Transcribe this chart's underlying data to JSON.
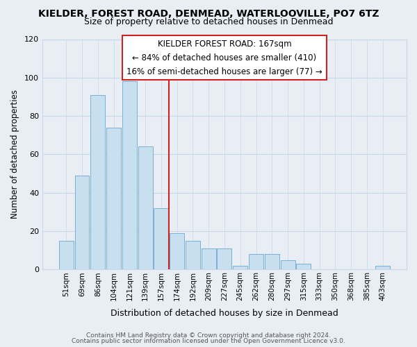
{
  "title": "KIELDER, FOREST ROAD, DENMEAD, WATERLOOVILLE, PO7 6TZ",
  "subtitle": "Size of property relative to detached houses in Denmead",
  "xlabel": "Distribution of detached houses by size in Denmead",
  "ylabel": "Number of detached properties",
  "bar_color": "#c8dff0",
  "bar_edge_color": "#7aafd4",
  "categories": [
    "51sqm",
    "69sqm",
    "86sqm",
    "104sqm",
    "121sqm",
    "139sqm",
    "157sqm",
    "174sqm",
    "192sqm",
    "209sqm",
    "227sqm",
    "245sqm",
    "262sqm",
    "280sqm",
    "297sqm",
    "315sqm",
    "333sqm",
    "350sqm",
    "368sqm",
    "385sqm",
    "403sqm"
  ],
  "values": [
    15,
    49,
    91,
    74,
    98,
    64,
    32,
    19,
    15,
    11,
    11,
    2,
    8,
    8,
    5,
    3,
    0,
    0,
    0,
    0,
    2
  ],
  "ylim": [
    0,
    120
  ],
  "yticks": [
    0,
    20,
    40,
    60,
    80,
    100,
    120
  ],
  "annotation_title": "KIELDER FOREST ROAD: 167sqm",
  "annotation_line1": "← 84% of detached houses are smaller (410)",
  "annotation_line2": "16% of semi-detached houses are larger (77) →",
  "property_line_x": 7,
  "vline_color": "#cc2222",
  "footer1": "Contains HM Land Registry data © Crown copyright and database right 2024.",
  "footer2": "Contains public sector information licensed under the Open Government Licence v3.0.",
  "bg_color": "#e8eef4",
  "plot_bg_color": "#e8eef4",
  "grid_color": "#c8d8e8",
  "title_fontsize": 10,
  "subtitle_fontsize": 9
}
